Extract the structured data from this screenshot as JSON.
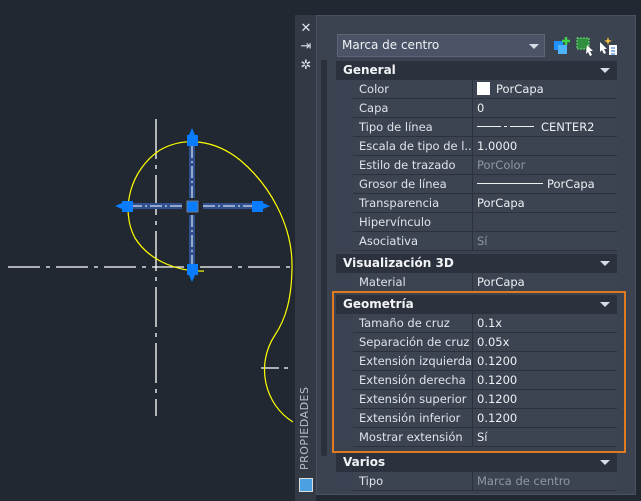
{
  "panel": {
    "title": "PROPIEDADES",
    "object_type": "Marca de centro",
    "toolbar_icons": [
      "toggle-pickadd-icon",
      "select-objects-icon",
      "quick-select-icon"
    ],
    "strip_icons": [
      "close-icon",
      "auto-hide-icon",
      "settings-icon",
      "properties-icon"
    ],
    "highlight_color": "#e07a1f"
  },
  "sections": {
    "general": {
      "title": "General",
      "rows": [
        {
          "label": "Color",
          "value": "PorCapa"
        },
        {
          "label": "Capa",
          "value": "0"
        },
        {
          "label": "Tipo de línea",
          "value": "CENTER2"
        },
        {
          "label": "Escala de tipo de l...",
          "value": "1.0000"
        },
        {
          "label": "Estilo de trazado",
          "value": "PorColor"
        },
        {
          "label": "Grosor de línea",
          "value": "PorCapa"
        },
        {
          "label": "Transparencia",
          "value": "PorCapa"
        },
        {
          "label": "Hipervínculo",
          "value": ""
        },
        {
          "label": "Asociativa",
          "value": "Sí"
        }
      ]
    },
    "vis3d": {
      "title": "Visualización 3D",
      "rows": [
        {
          "label": "Material",
          "value": "PorCapa"
        }
      ]
    },
    "geometry": {
      "title": "Geometría",
      "rows": [
        {
          "label": "Tamaño de cruz",
          "value": "0.1x"
        },
        {
          "label": "Separación de cruz",
          "value": "0.05x"
        },
        {
          "label": "Extensión izquierda",
          "value": "0.1200"
        },
        {
          "label": "Extensión derecha",
          "value": "0.1200"
        },
        {
          "label": "Extensión superior",
          "value": "0.1200"
        },
        {
          "label": "Extensión inferior",
          "value": "0.1200"
        },
        {
          "label": "Mostrar extensión",
          "value": "Sí"
        }
      ]
    },
    "misc": {
      "title": "Varios",
      "rows": [
        {
          "label": "Tipo",
          "value": "Marca de centro"
        }
      ]
    }
  },
  "drawing": {
    "curve_color": "#ffff00",
    "grip_color": "#0a7cff",
    "centerline_color": "#ffffff"
  }
}
